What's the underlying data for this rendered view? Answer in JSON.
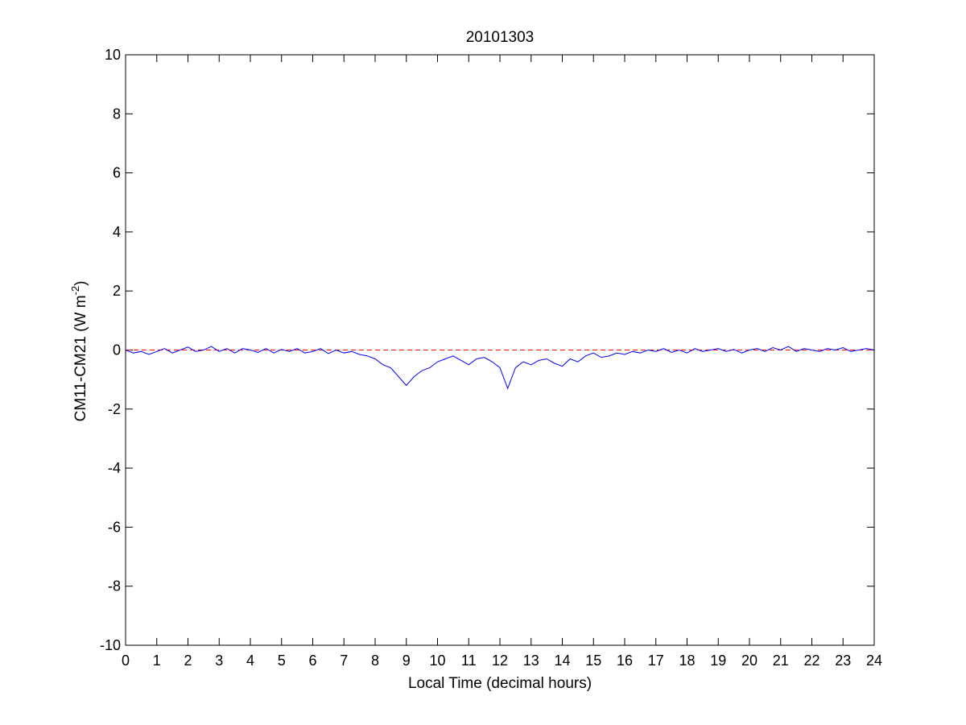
{
  "chart_data": {
    "type": "line",
    "title": "20101303",
    "xlabel": "Local Time (decimal hours)",
    "ylabel": {
      "main": "CM11-CM21 (W m",
      "superscript": "-2",
      "close": ")"
    },
    "xlim": [
      0,
      24
    ],
    "ylim": [
      -10,
      10
    ],
    "x_ticks": [
      0,
      1,
      2,
      3,
      4,
      5,
      6,
      7,
      8,
      9,
      10,
      11,
      12,
      13,
      14,
      15,
      16,
      17,
      18,
      19,
      20,
      21,
      22,
      23,
      24
    ],
    "y_ticks": [
      -10,
      -8,
      -6,
      -4,
      -2,
      0,
      2,
      4,
      6,
      8,
      10
    ],
    "grid": false,
    "legend": "none",
    "reference_line": {
      "y": 0,
      "color": "#ff0000",
      "style": "dashed"
    },
    "series": [
      {
        "color": "#0000ff",
        "x": [
          0,
          0.25,
          0.5,
          0.75,
          1,
          1.25,
          1.5,
          1.75,
          2,
          2.25,
          2.5,
          2.75,
          3,
          3.25,
          3.5,
          3.75,
          4,
          4.25,
          4.5,
          4.75,
          5,
          5.25,
          5.5,
          5.75,
          6,
          6.25,
          6.5,
          6.75,
          7,
          7.25,
          7.5,
          7.75,
          8,
          8.25,
          8.5,
          8.75,
          9,
          9.25,
          9.5,
          9.75,
          10,
          10.25,
          10.5,
          10.75,
          11,
          11.25,
          11.5,
          11.75,
          12,
          12.25,
          12.5,
          12.75,
          13,
          13.25,
          13.5,
          13.75,
          14,
          14.25,
          14.5,
          14.75,
          15,
          15.25,
          15.5,
          15.75,
          16,
          16.25,
          16.5,
          16.75,
          17,
          17.25,
          17.5,
          17.75,
          18,
          18.25,
          18.5,
          18.75,
          19,
          19.25,
          19.5,
          19.75,
          20,
          20.25,
          20.5,
          20.75,
          21,
          21.25,
          21.5,
          21.75,
          22,
          22.25,
          22.5,
          22.75,
          23,
          23.25,
          23.5,
          23.75,
          24
        ],
        "y": [
          0.0,
          -0.1,
          -0.05,
          -0.15,
          -0.05,
          0.05,
          -0.1,
          0.0,
          0.1,
          -0.05,
          0.0,
          0.12,
          -0.05,
          0.05,
          -0.1,
          0.05,
          0.0,
          -0.08,
          0.05,
          -0.1,
          0.02,
          -0.05,
          0.05,
          -0.1,
          -0.05,
          0.05,
          -0.12,
          0.0,
          -0.1,
          -0.05,
          -0.15,
          -0.2,
          -0.3,
          -0.5,
          -0.6,
          -0.9,
          -1.2,
          -0.9,
          -0.7,
          -0.6,
          -0.4,
          -0.3,
          -0.2,
          -0.35,
          -0.5,
          -0.3,
          -0.25,
          -0.4,
          -0.6,
          -1.3,
          -0.6,
          -0.4,
          -0.5,
          -0.35,
          -0.3,
          -0.45,
          -0.55,
          -0.3,
          -0.4,
          -0.2,
          -0.1,
          -0.25,
          -0.2,
          -0.1,
          -0.15,
          -0.05,
          -0.1,
          0.0,
          -0.05,
          0.05,
          -0.08,
          0.0,
          -0.1,
          0.05,
          -0.05,
          0.0,
          0.05,
          -0.05,
          0.02,
          -0.1,
          0.0,
          0.05,
          -0.05,
          0.08,
          0.0,
          0.12,
          -0.05,
          0.05,
          0.0,
          -0.05,
          0.05,
          0.0,
          0.08,
          -0.05,
          0.0,
          0.05,
          0.0
        ]
      }
    ]
  }
}
